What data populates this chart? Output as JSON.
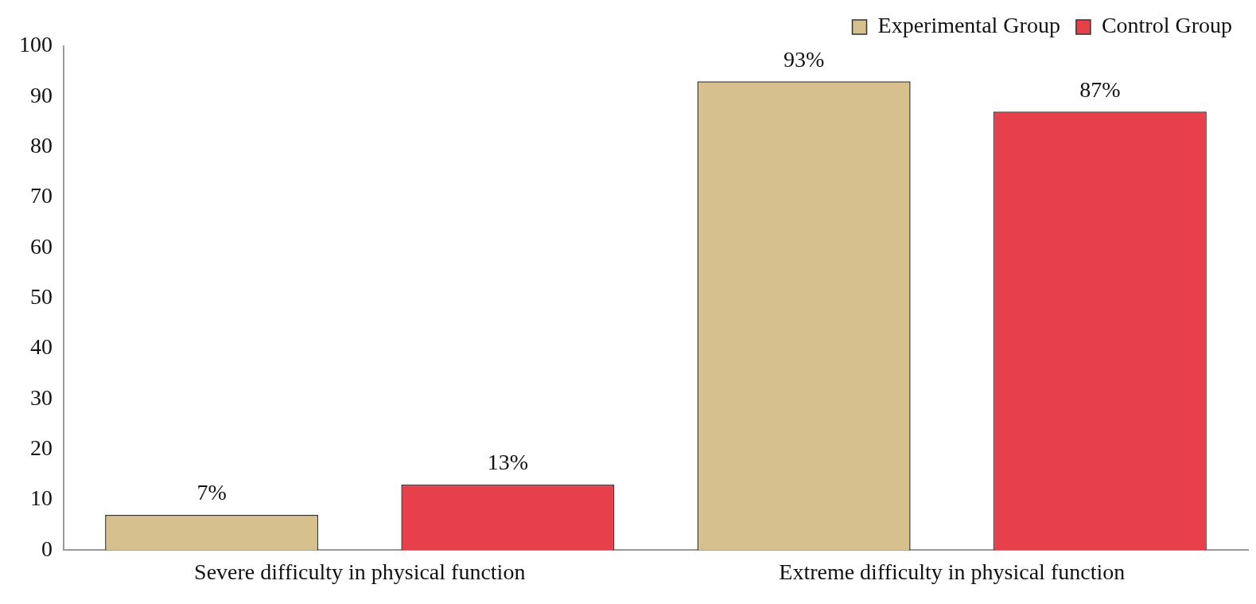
{
  "chart_data": {
    "type": "bar",
    "categories": [
      "Severe difficulty in physical function",
      "Extreme difficulty in physical function"
    ],
    "series": [
      {
        "name": "Experimental Group",
        "color": "#d6c08e",
        "values": [
          7,
          93
        ],
        "value_labels": [
          "7%",
          "93%"
        ]
      },
      {
        "name": "Control Group",
        "color": "#e8404a",
        "values": [
          13,
          87
        ],
        "value_labels": [
          "13%",
          "87%"
        ]
      }
    ],
    "ylim": [
      0,
      100
    ],
    "yticks": [
      0,
      10,
      20,
      30,
      40,
      50,
      60,
      70,
      80,
      90,
      100
    ],
    "grid": false,
    "legend": "top right"
  }
}
